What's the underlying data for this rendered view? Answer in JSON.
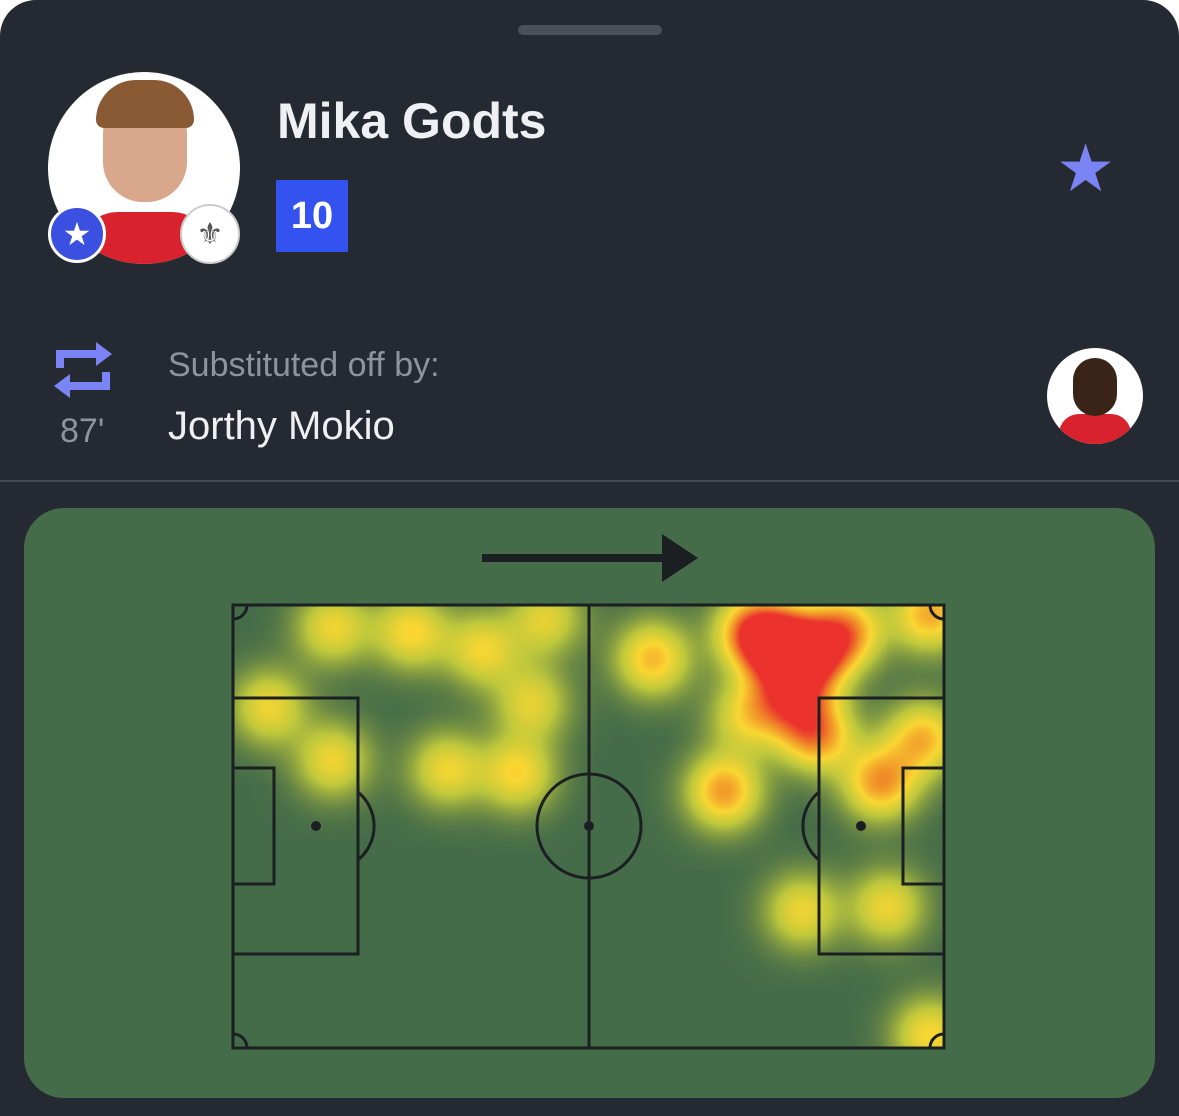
{
  "player": {
    "name": "Mika Godts",
    "rating": "10",
    "rating_color": "#3352f0",
    "badge_icon": "star-icon",
    "favorite_icon": "star-icon",
    "accent": "#7b84f5"
  },
  "substitution": {
    "icon": "substitution-arrows-icon",
    "minute": "87'",
    "label": "Substituted off by:",
    "player_name": "Jorthy Mokio"
  },
  "heatmap": {
    "attack_direction": "right",
    "pitch_color": "#456c48",
    "chart_data": {
      "type": "heatmap",
      "x_range": [
        0,
        100
      ],
      "y_range": [
        0,
        100
      ],
      "points": [
        {
          "x": 14,
          "y": 5,
          "w": 0.55
        },
        {
          "x": 25,
          "y": 6,
          "w": 0.6
        },
        {
          "x": 35,
          "y": 10,
          "w": 0.55
        },
        {
          "x": 44,
          "y": 3,
          "w": 0.5
        },
        {
          "x": 5,
          "y": 23,
          "w": 0.55
        },
        {
          "x": 14,
          "y": 35,
          "w": 0.55
        },
        {
          "x": 30,
          "y": 37,
          "w": 0.55
        },
        {
          "x": 40,
          "y": 38,
          "w": 0.6
        },
        {
          "x": 42,
          "y": 22,
          "w": 0.5
        },
        {
          "x": 59,
          "y": 12,
          "w": 0.7
        },
        {
          "x": 73,
          "y": 6,
          "w": 0.9
        },
        {
          "x": 77,
          "y": 9,
          "w": 1.0
        },
        {
          "x": 81,
          "y": 12,
          "w": 1.0
        },
        {
          "x": 86,
          "y": 6,
          "w": 0.85
        },
        {
          "x": 98,
          "y": 2,
          "w": 0.75
        },
        {
          "x": 78,
          "y": 21,
          "w": 0.7
        },
        {
          "x": 82,
          "y": 29,
          "w": 0.85
        },
        {
          "x": 69,
          "y": 42,
          "w": 0.8
        },
        {
          "x": 91,
          "y": 40,
          "w": 0.8
        },
        {
          "x": 97,
          "y": 30,
          "w": 0.7
        },
        {
          "x": 80,
          "y": 69,
          "w": 0.55
        },
        {
          "x": 92,
          "y": 68,
          "w": 0.55
        },
        {
          "x": 98,
          "y": 97,
          "w": 0.6
        },
        {
          "x": 72,
          "y": 25,
          "w": 0.5
        }
      ]
    }
  }
}
